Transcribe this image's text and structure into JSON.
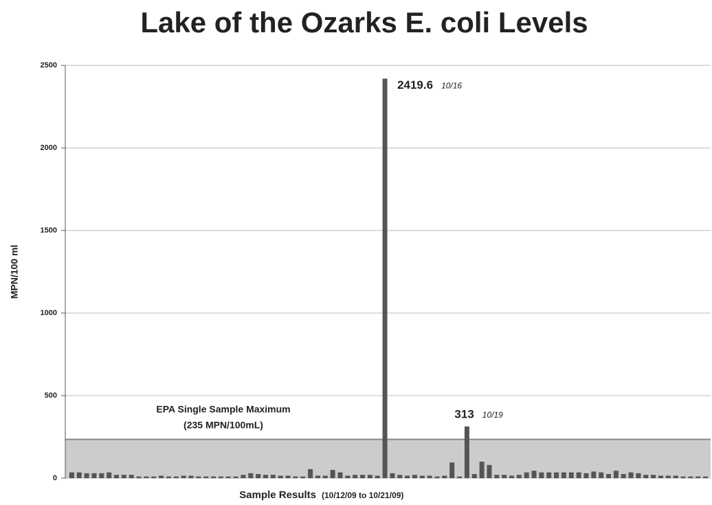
{
  "chart_data": {
    "type": "bar",
    "title": "Lake of the Ozarks E. coli Levels",
    "x_label": "Sample Results",
    "x_sublabel": "(10/12/09 to 10/21/09)",
    "y_label": "MPN/100 ml",
    "values": [
      35,
      35,
      30,
      30,
      30,
      35,
      20,
      20,
      20,
      10,
      10,
      10,
      15,
      10,
      10,
      15,
      15,
      10,
      10,
      10,
      10,
      10,
      10,
      20,
      30,
      25,
      20,
      20,
      15,
      15,
      10,
      10,
      55,
      15,
      15,
      50,
      35,
      15,
      20,
      20,
      20,
      15,
      2419.6,
      30,
      20,
      15,
      20,
      15,
      15,
      10,
      15,
      95,
      10,
      313,
      25,
      100,
      80,
      20,
      20,
      15,
      20,
      35,
      45,
      35,
      35,
      35,
      35,
      35,
      35,
      30,
      40,
      35,
      25,
      45,
      25,
      35,
      30,
      20,
      20,
      15,
      15,
      15,
      10,
      10,
      10,
      10
    ],
    "color": "#555555",
    "date_labels": {
      "42": "10/16",
      "53": "10/19"
    },
    "threshold": {
      "value": 235,
      "label": "EPA Single Sample Maximum",
      "sublabel": "(235 MPN/100mL)",
      "color": "#cccccc"
    },
    "ylim": [
      0,
      2500
    ],
    "yticks": [
      0,
      500,
      1000,
      1500,
      2000,
      2500
    ],
    "grid": true
  }
}
